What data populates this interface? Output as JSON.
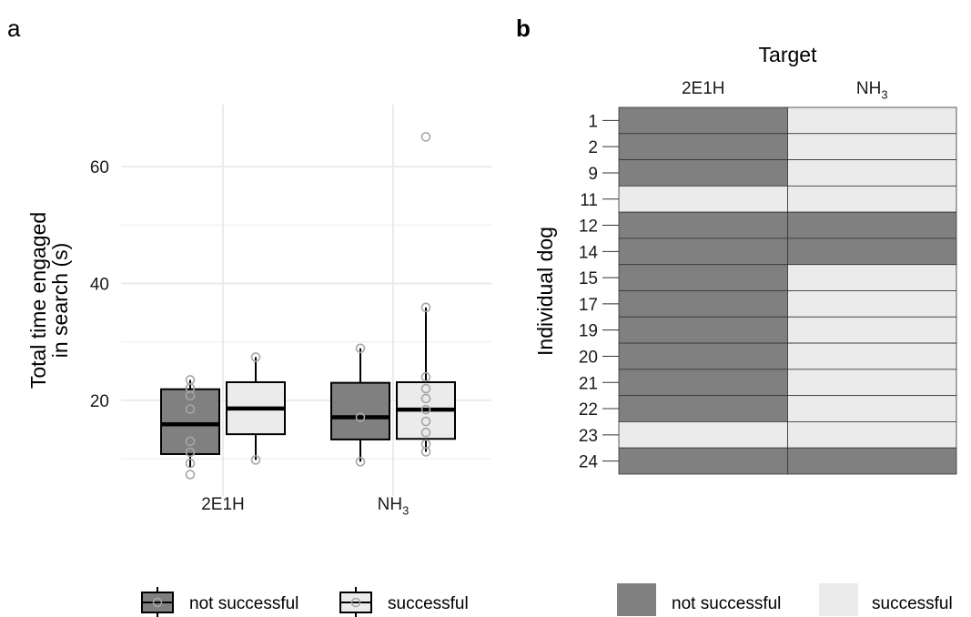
{
  "panels": {
    "a": {
      "label": "a"
    },
    "b": {
      "label": "b"
    }
  },
  "colors": {
    "not_successful": "#808080",
    "successful": "#ebebeb",
    "grid": "#ebebeb",
    "point": "#a6a6a6"
  },
  "chart_data": [
    {
      "type": "box",
      "panel": "a",
      "ylabel_line1": "Total time engaged",
      "ylabel_line2": "in search (s)",
      "xlabel": "",
      "categories": [
        "2E1H",
        "NH3"
      ],
      "category_labels": [
        {
          "main": "2E1H",
          "sub": ""
        },
        {
          "main": "NH",
          "sub": "3"
        }
      ],
      "y_ticks": [
        20,
        40,
        60
      ],
      "ylim": [
        5.5,
        69.5
      ],
      "grid": true,
      "series": [
        {
          "name": "not successful",
          "color_key": "not_successful"
        },
        {
          "name": "successful",
          "color_key": "successful"
        }
      ],
      "boxes": [
        {
          "category": "2E1H",
          "group": "not successful",
          "whisker_low": 8.5,
          "q1": 10.8,
          "median": 15.9,
          "q3": 21.9,
          "whisker_high": 23.5,
          "points": [
            7.3,
            9.2,
            11.1,
            13.0,
            18.5,
            20.8,
            22.1,
            23.5
          ]
        },
        {
          "category": "2E1H",
          "group": "successful",
          "whisker_low": 9.8,
          "q1": 14.2,
          "median": 18.6,
          "q3": 23.1,
          "whisker_high": 27.4,
          "points": [
            9.8,
            27.4
          ]
        },
        {
          "category": "NH3",
          "group": "not successful",
          "whisker_low": 9.5,
          "q1": 13.3,
          "median": 17.1,
          "q3": 23.0,
          "whisker_high": 28.9,
          "points": [
            9.5,
            17.1,
            28.9
          ]
        },
        {
          "category": "NH3",
          "group": "successful",
          "whisker_low": 11.2,
          "q1": 13.4,
          "median": 18.4,
          "q3": 23.1,
          "whisker_high": 35.9,
          "points": [
            11.2,
            12.5,
            14.5,
            16.4,
            18.4,
            20.3,
            22.0,
            24.0,
            35.9,
            65.1
          ]
        }
      ],
      "legend": {
        "position": "bottom",
        "items": [
          "not successful",
          "successful"
        ]
      }
    },
    {
      "type": "heatmap",
      "panel": "b",
      "title": "Target",
      "ylabel": "Individual dog",
      "columns": [
        {
          "main": "2E1H",
          "sub": ""
        },
        {
          "main": "NH",
          "sub": "3"
        }
      ],
      "rows": [
        "1",
        "2",
        "9",
        "11",
        "12",
        "14",
        "15",
        "17",
        "19",
        "20",
        "21",
        "22",
        "23",
        "24"
      ],
      "values": [
        [
          "not successful",
          "successful"
        ],
        [
          "not successful",
          "successful"
        ],
        [
          "not successful",
          "successful"
        ],
        [
          "successful",
          "successful"
        ],
        [
          "not successful",
          "not successful"
        ],
        [
          "not successful",
          "not successful"
        ],
        [
          "not successful",
          "successful"
        ],
        [
          "not successful",
          "successful"
        ],
        [
          "not successful",
          "successful"
        ],
        [
          "not successful",
          "successful"
        ],
        [
          "not successful",
          "successful"
        ],
        [
          "not successful",
          "successful"
        ],
        [
          "successful",
          "successful"
        ],
        [
          "not successful",
          "not successful"
        ]
      ],
      "legend": {
        "position": "bottom",
        "items": [
          "not successful",
          "successful"
        ]
      }
    }
  ]
}
